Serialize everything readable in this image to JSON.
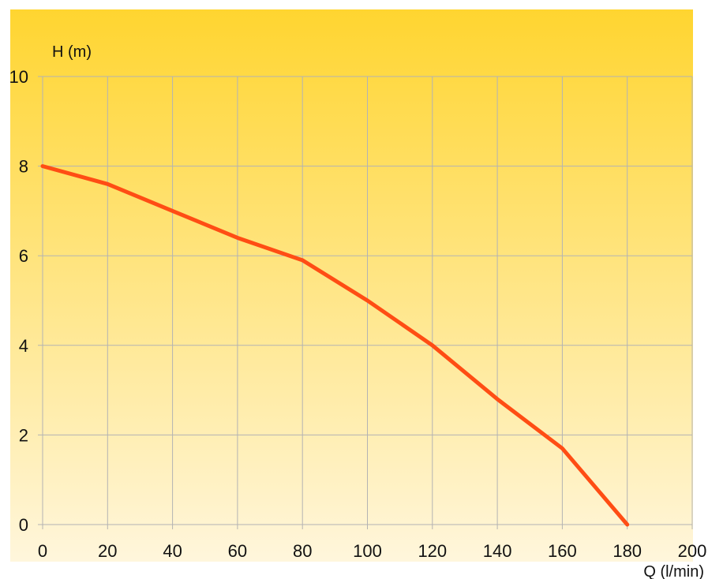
{
  "chart_data": {
    "type": "line",
    "xlabel": "Q (l/min)",
    "ylabel": "H (m)",
    "xlim": [
      0,
      200
    ],
    "ylim": [
      0,
      10
    ],
    "x_ticks": [
      0,
      20,
      40,
      60,
      80,
      100,
      120,
      140,
      160,
      180,
      200
    ],
    "y_ticks": [
      0,
      2,
      4,
      6,
      8,
      10
    ],
    "grid": true,
    "legend": "none",
    "background_gradient": [
      "#FFD530",
      "#FFF6DC"
    ],
    "series": [
      {
        "color": "#FF4D14",
        "x": [
          0,
          20,
          40,
          60,
          80,
          100,
          120,
          140,
          160,
          180
        ],
        "y": [
          8.0,
          7.6,
          7.0,
          6.4,
          5.9,
          5.0,
          4.0,
          2.8,
          1.7,
          0.0
        ]
      }
    ]
  }
}
